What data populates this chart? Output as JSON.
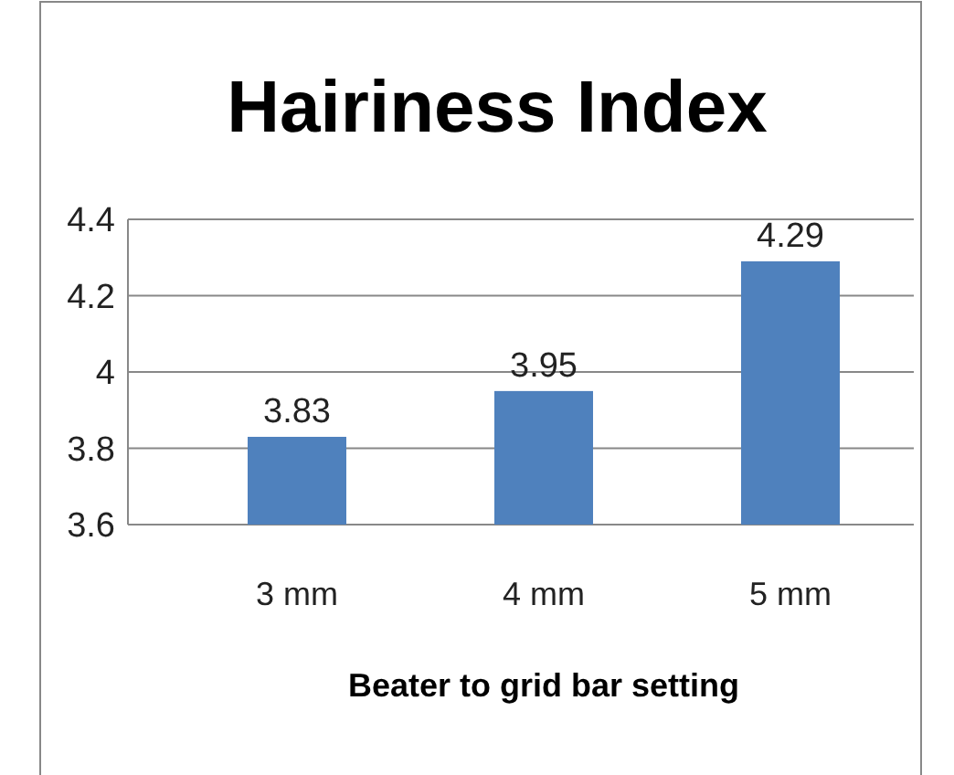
{
  "chart_data": {
    "type": "bar",
    "title": "Hairiness Index",
    "xlabel": "Beater to grid bar setting",
    "categories": [
      "3 mm",
      "4 mm",
      "5 mm"
    ],
    "values": [
      3.83,
      3.95,
      4.29
    ],
    "color": "#4f81bd",
    "ylim": [
      3.6,
      4.4
    ],
    "yticks": [
      {
        "value": 3.6,
        "label": "3.6"
      },
      {
        "value": 3.8,
        "label": "3.8"
      },
      {
        "value": 4,
        "label": "4"
      },
      {
        "value": 4.2,
        "label": "4.2"
      },
      {
        "value": 4.4,
        "label": "4.4"
      }
    ],
    "grid": "y",
    "data_labels": true
  }
}
